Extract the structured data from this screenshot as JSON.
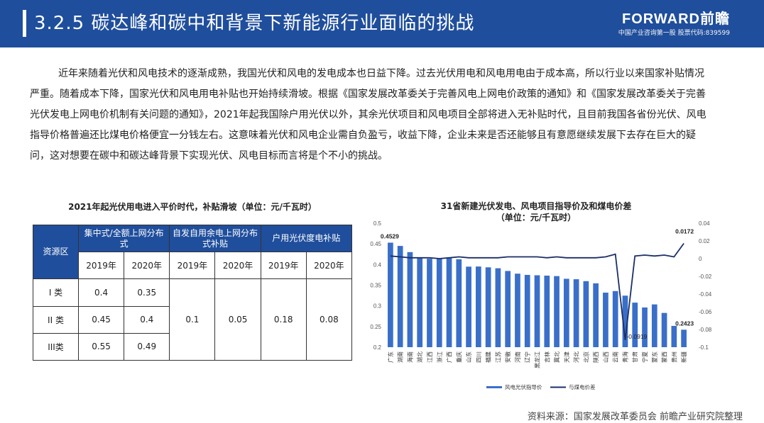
{
  "header": {
    "title": "3.2.5 碳达峰和碳中和背景下新能源行业面临的挑战"
  },
  "logo": {
    "brand": "FORWARD前瞻",
    "tagline": "中国产业咨询第一股 股票代码:839599"
  },
  "paragraph": "近年来随着光伏和风电技术的逐渐成熟，我国光伏和风电的发电成本也日益下降。过去光伏用电和风电用电由于成本高，所以行业以来国家补贴情况严重。随着成本下降，国家光伏和风电用电补贴也开始持续滑坡。根据《国家发展改革委关于完善风电上网电价政策的通知》和《国家发展改革委关于完善光伏发电上网电价机制有关问题的通知》，2021年起我国除户用光伏以外，其余光伏项目和风电项目全部将进入无补贴时代，且目前我国各省份光伏、风电指导价格普遍还比煤电价格便宜一分钱左右。这意味着光伏和风电企业需自负盈亏，收益下降，企业未来是否还能够且有意愿继续发展下去存在巨大的疑问，这对想要在碳中和碳达峰背景下实现光伏、风电目标而言将是个不小的挑战。",
  "table": {
    "title": "2021年起光伏用电进入平价时代，补贴滑坡（单位：元/千瓦时）",
    "region_header": "资源区",
    "groups": [
      "集中式/全额上网分布式",
      "自发自用余电上网分布式补贴",
      "户用光伏度电补贴"
    ],
    "years": [
      "2019年",
      "2020年",
      "2019年",
      "2020年",
      "2019年",
      "2020年"
    ],
    "rows": [
      {
        "label": "I 类",
        "v2019": "0.4",
        "v2020": "0.35"
      },
      {
        "label": "II 类",
        "v2019": "0.45",
        "v2020": "0.4"
      },
      {
        "label": "III类",
        "v2019": "0.55",
        "v2020": "0.49"
      }
    ],
    "merged": [
      "0.1",
      "0.05",
      "0.18",
      "0.08"
    ]
  },
  "chart_data": {
    "type": "bar",
    "title": "31省新建光伏发电、风电项目指导价及和煤电价差",
    "subtitle": "（单位：元/千瓦时）",
    "categories": [
      "广东",
      "湖南",
      "海南",
      "湖北",
      "江西",
      "浙江",
      "广西",
      "重庆",
      "山东",
      "四川",
      "福建",
      "江苏",
      "安徽",
      "河南",
      "辽宁",
      "黑龙江",
      "吉林",
      "冀北",
      "天津",
      "河北",
      "北京",
      "陕西",
      "山西",
      "云南",
      "青海",
      "甘肃",
      "宁夏",
      "蒙东",
      "蒙西",
      "贵州",
      "新疆"
    ],
    "series": [
      {
        "name": "风电光伏指导价",
        "color": "#3a6fc9",
        "axis": "left",
        "values": [
          0.4529,
          0.445,
          0.43,
          0.415,
          0.414,
          0.4143,
          0.4153,
          0.4127,
          0.3949,
          0.3952,
          0.3932,
          0.391,
          0.3844,
          0.3779,
          0.3749,
          0.374,
          0.3731,
          0.372,
          0.3655,
          0.3644,
          0.3598,
          0.3545,
          0.332,
          0.3358,
          0.3247,
          0.3078,
          0.2961,
          0.3035,
          0.2829,
          0.2515,
          0.2423
        ]
      },
      {
        "name": "与煤电价差",
        "color": "#1b2f66",
        "axis": "right",
        "values": [
          0.003,
          0.002,
          0.001,
          0.001,
          0.001,
          0.0,
          0.001,
          0.002,
          0.001,
          0.001,
          0.001,
          0.001,
          0.002,
          0.002,
          0.002,
          0.002,
          0.001,
          0.002,
          0.001,
          0.001,
          0.001,
          0.001,
          0.002,
          0.005,
          -0.0919,
          0.003,
          0.004,
          0.003,
          0.004,
          0.002,
          0.0172
        ]
      }
    ],
    "annotations": [
      "0.4529",
      "-0.0919",
      "0.0172",
      "0.2423"
    ],
    "ylim_left": [
      0.2,
      0.5
    ],
    "ylim_right": [
      -0.1,
      0.04
    ],
    "left_ticks": [
      "0.5",
      "0.45",
      "0.4",
      "0.35",
      "0.3",
      "0.25",
      "0.2"
    ],
    "right_ticks": [
      "0.04",
      "0.02",
      "0",
      "-0.02",
      "-0.04",
      "-0.06",
      "-0.08",
      "-0.1"
    ],
    "legend": [
      "风电光伏指导价",
      "与煤电价差"
    ],
    "legend_position": "bottom"
  },
  "source": "资料来源：国家发展改革委员会 前瞻产业研究院整理"
}
